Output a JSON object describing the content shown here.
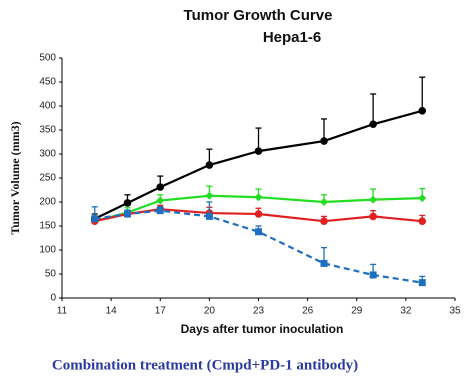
{
  "chart_data": {
    "type": "line",
    "title": "Tumor Growth Curve",
    "subtitle": "Hepa1-6",
    "x_label": "Days after tumor inoculation",
    "y_label": "Tumor Volume (mm3)",
    "caption": "Combination treatment (Cmpd+PD-1 antibody)",
    "xlim": [
      11,
      35
    ],
    "xticks": [
      11,
      14,
      17,
      20,
      23,
      26,
      29,
      32,
      35
    ],
    "ylim": [
      0,
      500
    ],
    "yticks": [
      0,
      50,
      100,
      150,
      200,
      250,
      300,
      350,
      400,
      450,
      500
    ],
    "grid": false,
    "x": [
      13,
      15,
      17,
      20,
      23,
      27,
      30,
      33
    ],
    "series": [
      {
        "color": "#000000",
        "marker": "circle",
        "dashed": false,
        "values": [
          165,
          198,
          231,
          277,
          306,
          327,
          362,
          390
        ],
        "errors": [
          10,
          17,
          23,
          33,
          48,
          46,
          63,
          70
        ]
      },
      {
        "color": "#22dd22",
        "marker": "diamond",
        "dashed": false,
        "values": [
          160,
          178,
          203,
          213,
          210,
          200,
          205,
          208
        ],
        "errors": [
          8,
          10,
          12,
          20,
          17,
          15,
          22,
          20
        ]
      },
      {
        "color": "#e02020",
        "marker": "circle",
        "dashed": false,
        "values": [
          160,
          175,
          185,
          177,
          175,
          160,
          170,
          160
        ],
        "errors": [
          6,
          8,
          8,
          12,
          12,
          10,
          12,
          12
        ]
      },
      {
        "color": "#1f6fc0",
        "marker": "square",
        "dashed": true,
        "values": [
          165,
          175,
          182,
          170,
          138,
          72,
          48,
          32
        ],
        "errors": [
          25,
          8,
          8,
          30,
          12,
          33,
          22,
          13
        ]
      }
    ]
  }
}
